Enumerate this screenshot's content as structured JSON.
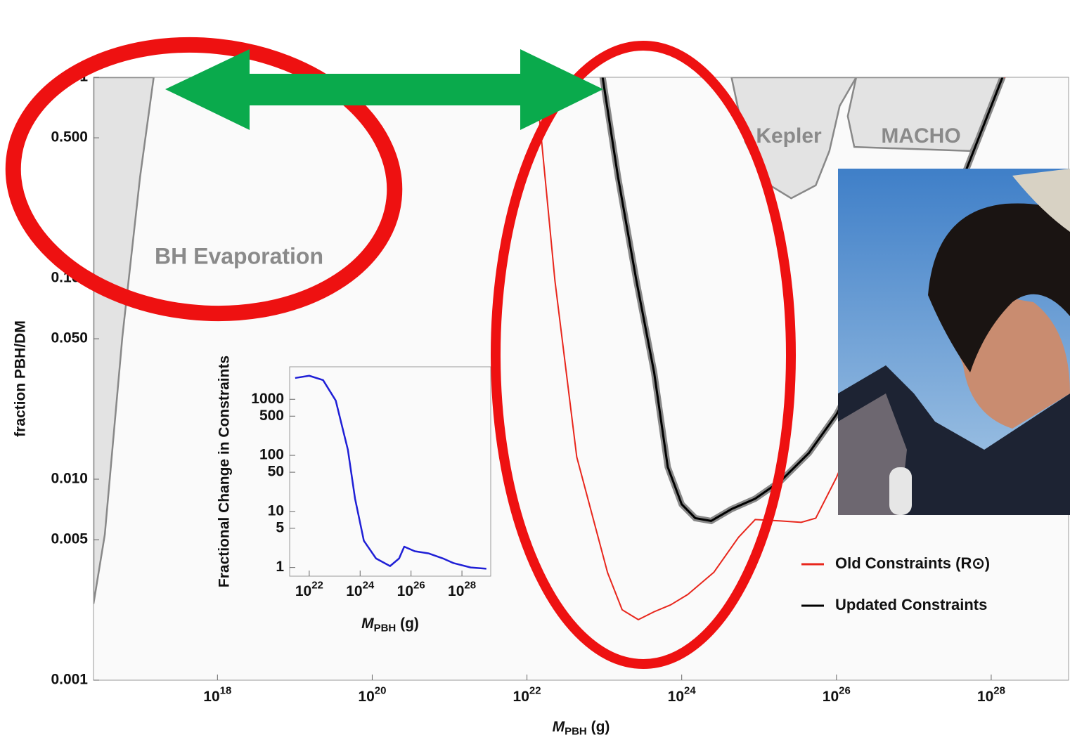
{
  "chart_data": [
    {
      "type": "line",
      "x_label": "M_PBH (g)",
      "y_label": "fraction PBH/DM",
      "log_x": true,
      "log_y": true,
      "xlim": [
        2.5e+16,
        1e+29
      ],
      "ylim": [
        0.001,
        1
      ],
      "xticks": [
        {
          "value": 1e+18,
          "label": "10^18"
        },
        {
          "value": 1e+20,
          "label": "10^20"
        },
        {
          "value": 1e+22,
          "label": "10^22"
        },
        {
          "value": 1e+24,
          "label": "10^24"
        },
        {
          "value": 1e+26,
          "label": "10^26"
        },
        {
          "value": 1e+28,
          "label": "10^28"
        }
      ],
      "yticks": [
        1,
        {
          "value": 0.5,
          "label": "0.500"
        },
        {
          "value": 0.1,
          "label": "0.100"
        },
        {
          "value": 0.05,
          "label": "0.050"
        },
        {
          "value": 0.01,
          "label": "0.010"
        },
        {
          "value": 0.005,
          "label": "0.005"
        },
        {
          "value": 0.001,
          "label": "0.001"
        }
      ],
      "legend": "lower right",
      "series": [
        {
          "name": "Old Constraints (R⊙)",
          "color": "#e8261c",
          "x": [
            1.29e+22,
            2.3e+22,
            4.4e+22,
            1.1e+23,
            1.7e+23,
            2.75e+23,
            4.4e+23,
            7.2e+23,
            1.2e+24,
            2.6e+24,
            5.4e+24,
            8.9e+24,
            1.9e+25,
            3.5e+25,
            5.4e+25,
            1e+26,
            5.4e+27,
            1.5e+28
          ],
          "values": [
            1,
            0.097,
            0.0129,
            0.00343,
            0.00224,
            0.002,
            0.00219,
            0.00237,
            0.00267,
            0.00344,
            0.00513,
            0.0063,
            0.0062,
            0.0061,
            0.0064,
            0.0102,
            0.366,
            1
          ]
        },
        {
          "name": "Updated Constraints",
          "color": "#000000",
          "x": [
            9.5e+22,
            1.5e+23,
            2.6e+23,
            4.4e+23,
            6.6e+23,
            1e+24,
            1.5e+24,
            2.4e+24,
            4.4e+24,
            8.9e+24,
            1.9e+25,
            4.4e+25,
            1e+26,
            4.8e+27,
            1.4e+28
          ],
          "values": [
            1,
            0.32,
            0.097,
            0.034,
            0.0115,
            0.0075,
            0.0064,
            0.0062,
            0.0071,
            0.008,
            0.0098,
            0.0135,
            0.021,
            0.35,
            1
          ]
        }
      ],
      "regions": [
        {
          "name": "BH Evaporation",
          "x": [
            2.5e+16,
            3.5e+16,
            5.9e+16,
            1e+17,
            1.5e+17
          ],
          "values": [
            0.0024,
            0.0053,
            0.051,
            0.32,
            1
          ]
        },
        {
          "name": "Kepler",
          "x": [
            4.4e+24,
            6.6e+24,
            1.2e+25,
            2.6e+25,
            5.4e+25,
            8.1e+25,
            1.1e+26,
            1.8e+26
          ],
          "values": [
            1,
            0.48,
            0.3,
            0.25,
            0.29,
            0.43,
            0.72,
            1
          ]
        },
        {
          "name": "MACHO",
          "x": [
            1.8e+26,
            1.4e+26,
            1.7e+26,
            5.4e+27,
            1.5e+28
          ],
          "values": [
            1,
            0.64,
            0.45,
            0.43,
            1
          ]
        }
      ]
    },
    {
      "type": "line",
      "x_label": "M_PBH (g)",
      "y_label": "Fractional Change in Constraints",
      "log_x": true,
      "log_y": true,
      "xlim": [
        1.7e+21,
        1.35e+29
      ],
      "ylim": [
        0.7,
        3800
      ],
      "xticks": [
        {
          "value": 1e+22,
          "label": "10^22"
        },
        {
          "value": 1e+24,
          "label": "10^24"
        },
        {
          "value": 1e+26,
          "label": "10^26"
        },
        {
          "value": 1e+28,
          "label": "10^28"
        }
      ],
      "yticks": [
        1,
        5,
        10,
        50,
        100,
        500,
        1000
      ],
      "series": [
        {
          "color": "#1f1fd6",
          "x": [
            2.8e+21,
            1e+22,
            3.5e+22,
            1.1e+23,
            3.3e+23,
            6.3e+23,
            1.4e+24,
            4.2e+24,
            1.5e+25,
            3.4e+25,
            5.4e+25,
            1.4e+26,
            5e+26,
            1.8e+27,
            4.6e+27,
            2.2e+28,
            9.1e+28
          ],
          "values": [
            2400,
            2630,
            2200,
            950,
            126,
            17,
            3,
            1.45,
            1.06,
            1.45,
            2.35,
            1.95,
            1.78,
            1.45,
            1.2,
            1,
            0.95
          ]
        }
      ]
    }
  ]
}
